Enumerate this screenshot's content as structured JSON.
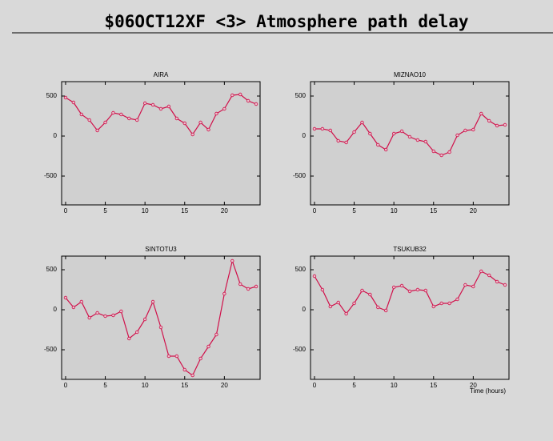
{
  "title": "$06OCT12XF <3>  Atmosphere path delay",
  "chart_data": [
    {
      "type": "line",
      "title": "AIRA",
      "color": "#d0104a",
      "x": [
        0,
        1,
        2,
        3,
        4,
        5,
        6,
        7,
        8,
        9,
        10,
        11,
        12,
        13,
        14,
        15,
        16,
        17,
        18,
        19,
        20,
        21,
        22,
        23,
        24
      ],
      "values": [
        480,
        420,
        270,
        200,
        70,
        170,
        290,
        270,
        220,
        200,
        410,
        390,
        340,
        370,
        220,
        160,
        20,
        170,
        80,
        280,
        340,
        510,
        520,
        440,
        400
      ],
      "xlim": [
        -0.5,
        24.5
      ],
      "xticks": [
        0,
        5,
        10,
        15,
        20
      ],
      "ylim": [
        -860,
        680
      ],
      "yticks": [
        500,
        0,
        -500
      ]
    },
    {
      "type": "line",
      "title": "MIZNAO10",
      "color": "#d0104a",
      "x": [
        0,
        1,
        2,
        3,
        4,
        5,
        6,
        7,
        8,
        9,
        10,
        11,
        12,
        13,
        14,
        15,
        16,
        17,
        18,
        19,
        20,
        21,
        22,
        23,
        24
      ],
      "values": [
        90,
        90,
        70,
        -60,
        -80,
        50,
        170,
        30,
        -110,
        -170,
        30,
        60,
        -10,
        -50,
        -70,
        -190,
        -240,
        -200,
        10,
        70,
        80,
        280,
        190,
        130,
        140
      ],
      "xlim": [
        -0.5,
        24.5
      ],
      "xticks": [
        0,
        5,
        10,
        15,
        20
      ],
      "ylim": [
        -860,
        680
      ],
      "yticks": [
        500,
        0,
        -500
      ]
    },
    {
      "type": "line",
      "title": "SINTOTU3",
      "color": "#d0104a",
      "x": [
        0,
        1,
        2,
        3,
        4,
        5,
        6,
        7,
        8,
        9,
        10,
        11,
        12,
        13,
        14,
        15,
        16,
        17,
        18,
        19,
        20,
        21,
        22,
        23,
        24
      ],
      "values": [
        150,
        30,
        100,
        -100,
        -40,
        -80,
        -70,
        -20,
        -360,
        -280,
        -120,
        100,
        -220,
        -580,
        -580,
        -750,
        -820,
        -610,
        -460,
        -310,
        200,
        610,
        320,
        260,
        290
      ],
      "xlim": [
        -0.5,
        24.5
      ],
      "xticks": [
        0,
        5,
        10,
        15,
        20
      ],
      "ylim": [
        -870,
        670
      ],
      "yticks": [
        500,
        0,
        -500
      ]
    },
    {
      "type": "line",
      "title": "TSUKUB32",
      "color": "#d0104a",
      "xlabel": "Time (hours)",
      "x": [
        0,
        1,
        2,
        3,
        4,
        5,
        6,
        7,
        8,
        9,
        10,
        11,
        12,
        13,
        14,
        15,
        16,
        17,
        18,
        19,
        20,
        21,
        22,
        23,
        24
      ],
      "values": [
        420,
        250,
        40,
        90,
        -50,
        80,
        240,
        190,
        30,
        -10,
        280,
        300,
        230,
        250,
        240,
        40,
        80,
        80,
        130,
        310,
        290,
        480,
        430,
        350,
        310
      ],
      "xlim": [
        -0.5,
        24.5
      ],
      "xticks": [
        0,
        5,
        10,
        15,
        20
      ],
      "ylim": [
        -870,
        670
      ],
      "yticks": [
        500,
        0,
        -500
      ]
    }
  ]
}
